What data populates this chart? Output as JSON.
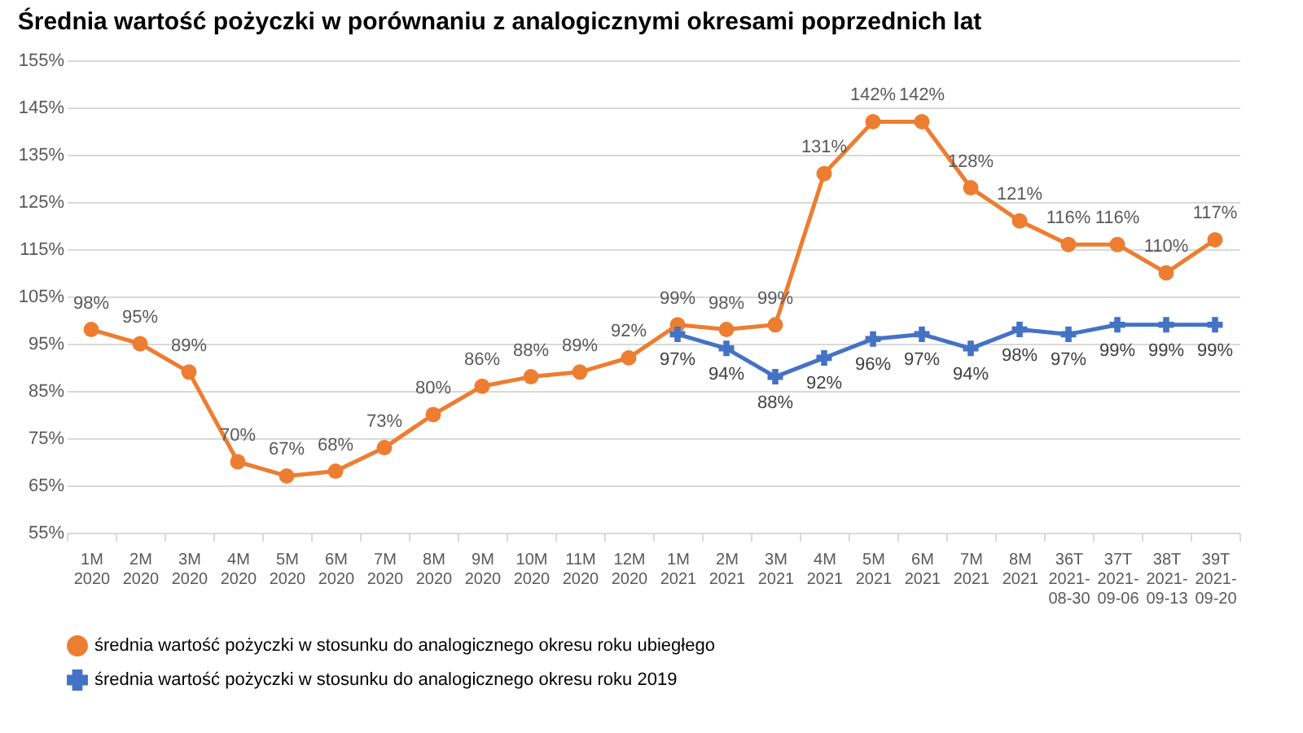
{
  "chart_data": {
    "type": "line",
    "title": "Średnia wartość pożyczki w porównaniu z analogicznymi okresami poprzednich lat",
    "categories": [
      "1M 2020",
      "2M 2020",
      "3M 2020",
      "4M 2020",
      "5M 2020",
      "6M 2020",
      "7M 2020",
      "8M 2020",
      "9M 2020",
      "10M 2020",
      "11M 2020",
      "12M 2020",
      "1M 2021",
      "2M 2021",
      "3M 2021",
      "4M 2021",
      "5M 2021",
      "6M 2021",
      "7M 2021",
      "8M 2021",
      "36T 2021-08-30",
      "37T 2021-09-06",
      "38T 2021-09-13",
      "39T 2021-09-20"
    ],
    "series": [
      {
        "name": "średnia wartość pożyczki w stosunku do analogicznego okresu roku ubiegłego",
        "color": "#ed7d31",
        "marker": "circle",
        "values": [
          98,
          95,
          89,
          70,
          67,
          68,
          73,
          80,
          86,
          88,
          89,
          92,
          99,
          98,
          99,
          131,
          142,
          142,
          128,
          121,
          116,
          116,
          110,
          117
        ],
        "value_labels": [
          "98%",
          "95%",
          "89%",
          "70%",
          "67%",
          "68%",
          "73%",
          "80%",
          "86%",
          "88%",
          "89%",
          "92%",
          "99%",
          "98%",
          "99%",
          "131%",
          "142%",
          "142%",
          "128%",
          "121%",
          "116%",
          "116%",
          "110%",
          "117%"
        ]
      },
      {
        "name": "średnia wartość pożyczki w stosunku do analogicznego okresu roku 2019",
        "color": "#4472c4",
        "marker": "cross",
        "values": [
          null,
          null,
          null,
          null,
          null,
          null,
          null,
          null,
          null,
          null,
          null,
          null,
          97,
          94,
          88,
          92,
          96,
          97,
          94,
          98,
          97,
          99,
          99,
          99
        ],
        "value_labels": [
          null,
          null,
          null,
          null,
          null,
          null,
          null,
          null,
          null,
          null,
          null,
          null,
          "97%",
          "94%",
          "88%",
          "92%",
          "96%",
          "97%",
          "94%",
          "98%",
          "97%",
          "99%",
          "99%",
          "99%"
        ]
      }
    ],
    "ylim": [
      55,
      155
    ],
    "yticks": [
      {
        "value": 55,
        "label": "55%"
      },
      {
        "value": 65,
        "label": "65%"
      },
      {
        "value": 75,
        "label": "75%"
      },
      {
        "value": 85,
        "label": "85%"
      },
      {
        "value": 95,
        "label": "95%"
      },
      {
        "value": 105,
        "label": "105%"
      },
      {
        "value": 115,
        "label": "115%"
      },
      {
        "value": 125,
        "label": "125%"
      },
      {
        "value": 135,
        "label": "135%"
      },
      {
        "value": 145,
        "label": "145%"
      },
      {
        "value": 155,
        "label": "155%"
      }
    ],
    "grid": "y",
    "legend": "bottom"
  }
}
